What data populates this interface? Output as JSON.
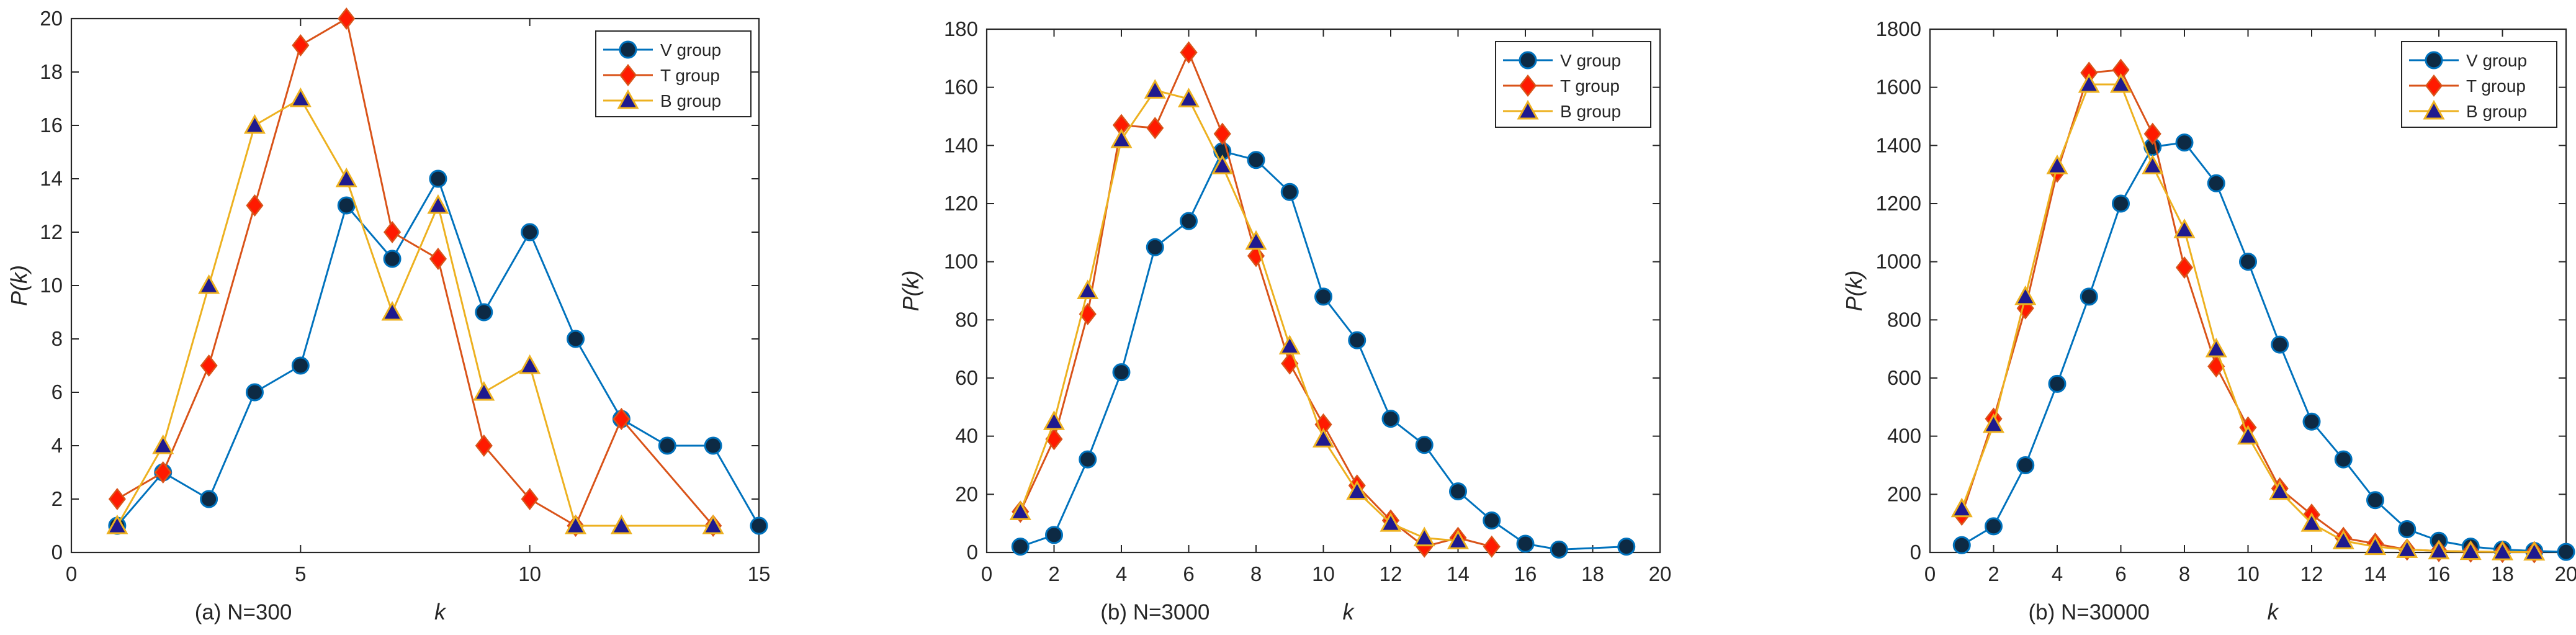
{
  "chart_data": [
    {
      "type": "line",
      "title": "",
      "caption": "(a) N=300",
      "xlabel": "k",
      "ylabel": "P(k)",
      "xlim": [
        0,
        15
      ],
      "ylim": [
        0,
        20
      ],
      "xticks": [
        0,
        5,
        10,
        15
      ],
      "yticks": [
        0,
        2,
        4,
        6,
        8,
        10,
        12,
        14,
        16,
        18,
        20
      ],
      "legend_position": "top-right",
      "series": [
        {
          "name": "V group",
          "color": "#0072BD",
          "marker": "circle",
          "x": [
            1,
            2,
            3,
            4,
            5,
            6,
            7,
            8,
            9,
            10,
            11,
            12,
            13,
            14,
            15
          ],
          "y": [
            1,
            3,
            2,
            6,
            7,
            13,
            11,
            14,
            9,
            12,
            8,
            5,
            4,
            4,
            1
          ]
        },
        {
          "name": "T group",
          "color": "#D95319",
          "marker": "diamond",
          "x": [
            1,
            2,
            3,
            4,
            5,
            6,
            7,
            8,
            9,
            10,
            11,
            12,
            14
          ],
          "y": [
            2,
            3,
            7,
            13,
            19,
            20,
            12,
            11,
            4,
            2,
            1,
            5,
            1
          ]
        },
        {
          "name": "B group",
          "color": "#EDB120",
          "marker": "triangle",
          "x": [
            1,
            2,
            3,
            4,
            5,
            6,
            7,
            8,
            9,
            10,
            11,
            12,
            14
          ],
          "y": [
            1,
            4,
            10,
            16,
            17,
            14,
            9,
            13,
            6,
            7,
            1,
            1,
            1
          ]
        }
      ]
    },
    {
      "type": "line",
      "title": "",
      "caption": "(b) N=3000",
      "xlabel": "k",
      "ylabel": "P(k)",
      "xlim": [
        0,
        20
      ],
      "ylim": [
        0,
        180
      ],
      "xticks": [
        0,
        2,
        4,
        6,
        8,
        10,
        12,
        14,
        16,
        18,
        20
      ],
      "yticks": [
        0,
        20,
        40,
        60,
        80,
        100,
        120,
        140,
        160,
        180
      ],
      "legend_position": "top-right",
      "series": [
        {
          "name": "V group",
          "color": "#0072BD",
          "marker": "circle",
          "x": [
            1,
            2,
            3,
            4,
            5,
            6,
            7,
            8,
            9,
            10,
            11,
            12,
            13,
            14,
            15,
            16,
            17,
            19
          ],
          "y": [
            2,
            6,
            32,
            62,
            105,
            114,
            138,
            135,
            124,
            88,
            73,
            46,
            37,
            21,
            11,
            3,
            1,
            2
          ]
        },
        {
          "name": "T group",
          "color": "#D95319",
          "marker": "diamond",
          "x": [
            1,
            2,
            3,
            4,
            5,
            6,
            7,
            8,
            9,
            10,
            11,
            12,
            13,
            14,
            15
          ],
          "y": [
            14,
            39,
            82,
            147,
            146,
            172,
            144,
            102,
            65,
            44,
            23,
            11,
            2,
            5,
            2
          ]
        },
        {
          "name": "B group",
          "color": "#EDB120",
          "marker": "triangle",
          "x": [
            1,
            2,
            3,
            4,
            5,
            6,
            7,
            8,
            9,
            10,
            11,
            12,
            13,
            14
          ],
          "y": [
            14,
            45,
            90,
            142,
            159,
            156,
            133,
            107,
            71,
            39,
            21,
            10,
            5,
            4
          ]
        }
      ]
    },
    {
      "type": "line",
      "title": "",
      "caption": "(b) N=30000",
      "xlabel": "k",
      "ylabel": "P(k)",
      "xlim": [
        0,
        20
      ],
      "ylim": [
        0,
        1800
      ],
      "xticks": [
        0,
        2,
        4,
        6,
        8,
        10,
        12,
        14,
        16,
        18,
        20
      ],
      "yticks": [
        0,
        200,
        400,
        600,
        800,
        1000,
        1200,
        1400,
        1600,
        1800
      ],
      "legend_position": "top-right",
      "series": [
        {
          "name": "V group",
          "color": "#0072BD",
          "marker": "circle",
          "x": [
            1,
            2,
            3,
            4,
            5,
            6,
            7,
            8,
            9,
            10,
            11,
            12,
            13,
            14,
            15,
            16,
            17,
            18,
            19,
            20
          ],
          "y": [
            25,
            90,
            300,
            580,
            880,
            1200,
            1395,
            1410,
            1270,
            1000,
            715,
            450,
            320,
            180,
            80,
            40,
            20,
            10,
            5,
            2
          ]
        },
        {
          "name": "T group",
          "color": "#D95319",
          "marker": "diamond",
          "x": [
            1,
            2,
            3,
            4,
            5,
            6,
            7,
            8,
            9,
            10,
            11,
            12,
            13,
            14,
            15,
            16,
            17,
            18,
            19
          ],
          "y": [
            130,
            460,
            840,
            1310,
            1650,
            1660,
            1440,
            980,
            640,
            430,
            220,
            130,
            50,
            30,
            10,
            5,
            3,
            2,
            1
          ]
        },
        {
          "name": "B group",
          "color": "#EDB120",
          "marker": "triangle",
          "x": [
            1,
            2,
            3,
            4,
            5,
            6,
            7,
            8,
            9,
            10,
            11,
            12,
            13,
            14,
            15,
            16,
            17,
            18,
            19
          ],
          "y": [
            150,
            440,
            880,
            1330,
            1610,
            1610,
            1330,
            1110,
            700,
            400,
            210,
            100,
            40,
            20,
            10,
            5,
            3,
            2,
            1
          ]
        }
      ]
    }
  ]
}
